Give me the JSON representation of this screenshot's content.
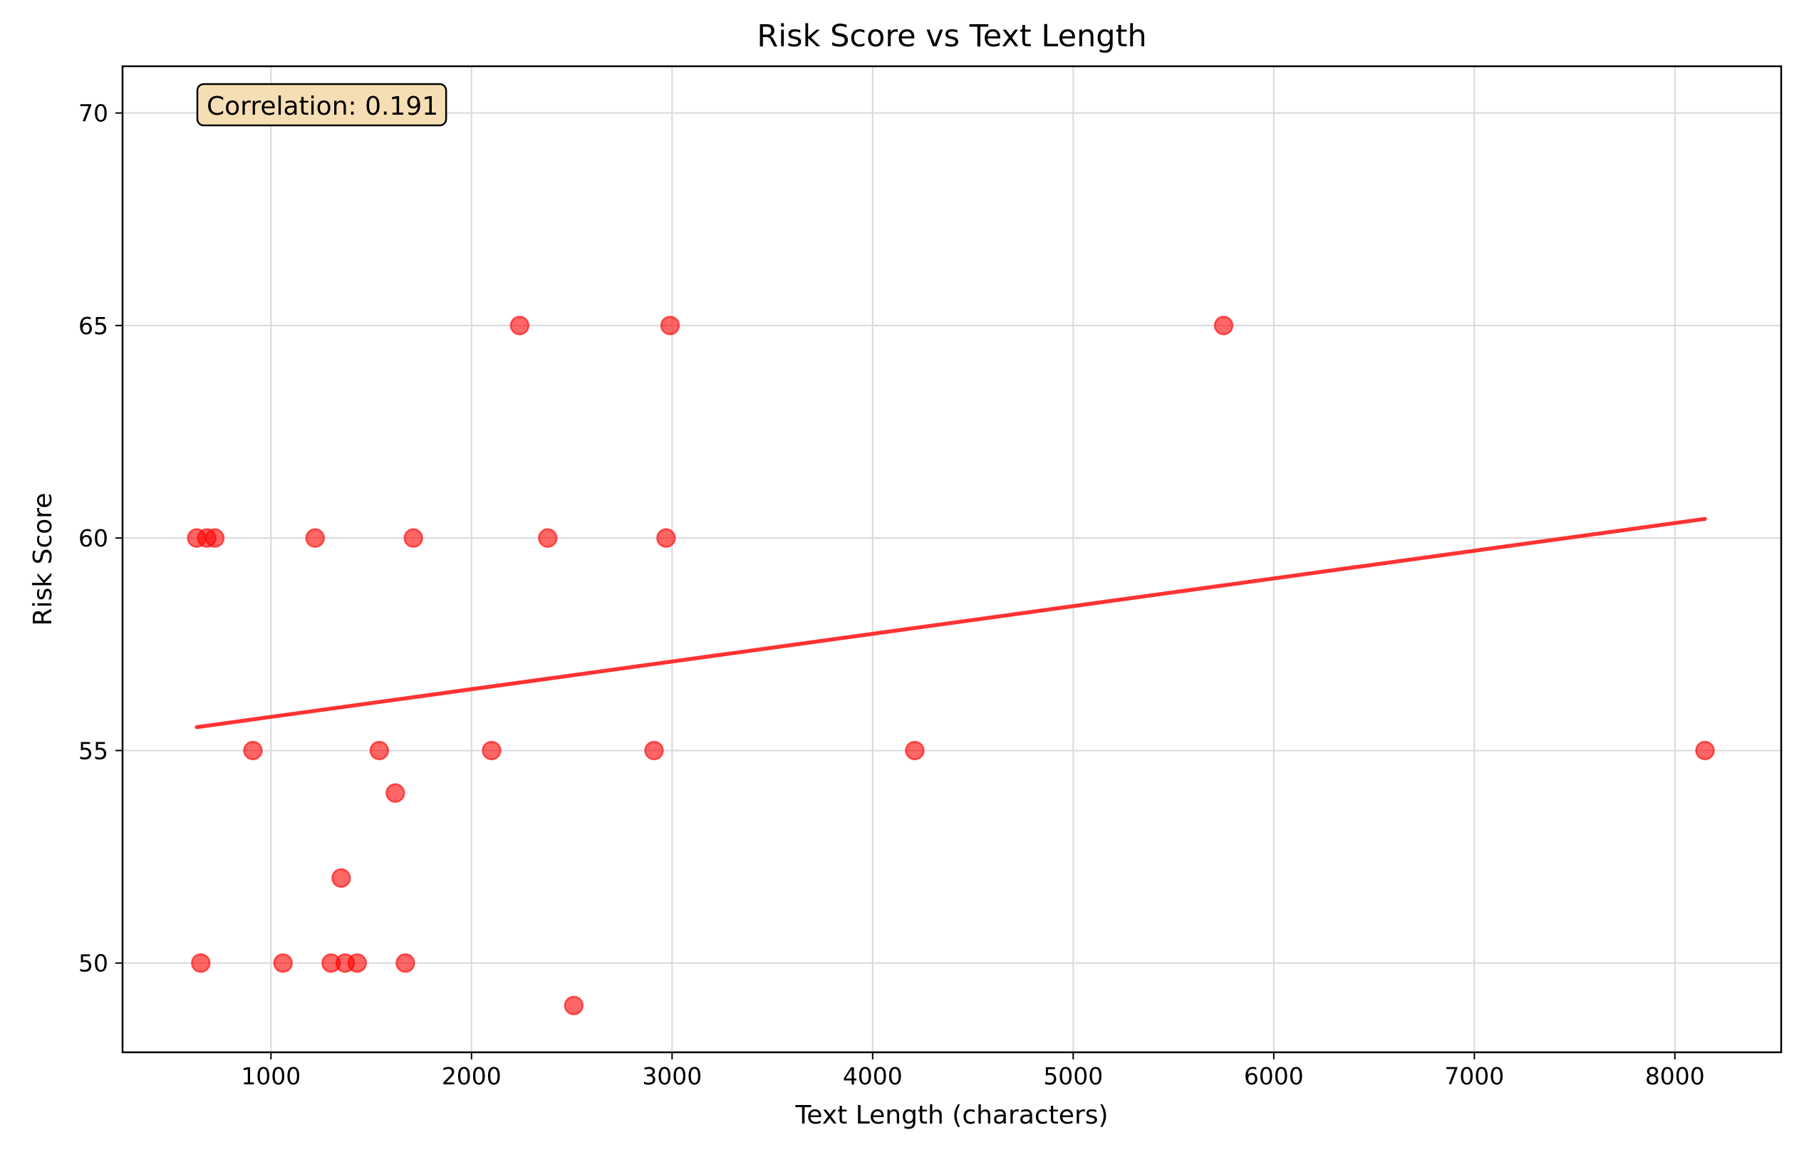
{
  "chart_data": {
    "type": "scatter",
    "title": "Risk Score vs Text Length",
    "xlabel": "Text Length (characters)",
    "ylabel": "Risk Score",
    "xlim": [
      260,
      8530
    ],
    "ylim": [
      47.9,
      71.1
    ],
    "xticks": [
      1000,
      2000,
      3000,
      4000,
      5000,
      6000,
      7000,
      8000
    ],
    "yticks": [
      50,
      55,
      60,
      65,
      70
    ],
    "grid": true,
    "annotation": "Correlation: 0.191",
    "annotation_position": "top-left",
    "colors": {
      "points": "#ff0000",
      "trend": "#ff3333",
      "annotation_bg": "#f5deb3",
      "grid": "#d9d9d9"
    },
    "series": [
      {
        "points": [
          [
            630,
            60
          ],
          [
            680,
            60
          ],
          [
            720,
            60
          ],
          [
            1220,
            60
          ],
          [
            1710,
            60
          ],
          [
            2380,
            60
          ],
          [
            2970,
            60
          ],
          [
            2240,
            65
          ],
          [
            2990,
            65
          ],
          [
            5750,
            65
          ],
          [
            910,
            55
          ],
          [
            1540,
            55
          ],
          [
            2100,
            55
          ],
          [
            2910,
            55
          ],
          [
            4210,
            55
          ],
          [
            8150,
            55
          ],
          [
            1620,
            54
          ],
          [
            1350,
            52
          ],
          [
            650,
            50
          ],
          [
            1060,
            50
          ],
          [
            1300,
            50
          ],
          [
            1370,
            50
          ],
          [
            1430,
            50
          ],
          [
            1670,
            50
          ],
          [
            2510,
            49
          ]
        ]
      }
    ],
    "trendline": {
      "x": [
        630,
        8150
      ],
      "y": [
        55.55,
        60.45
      ]
    }
  }
}
